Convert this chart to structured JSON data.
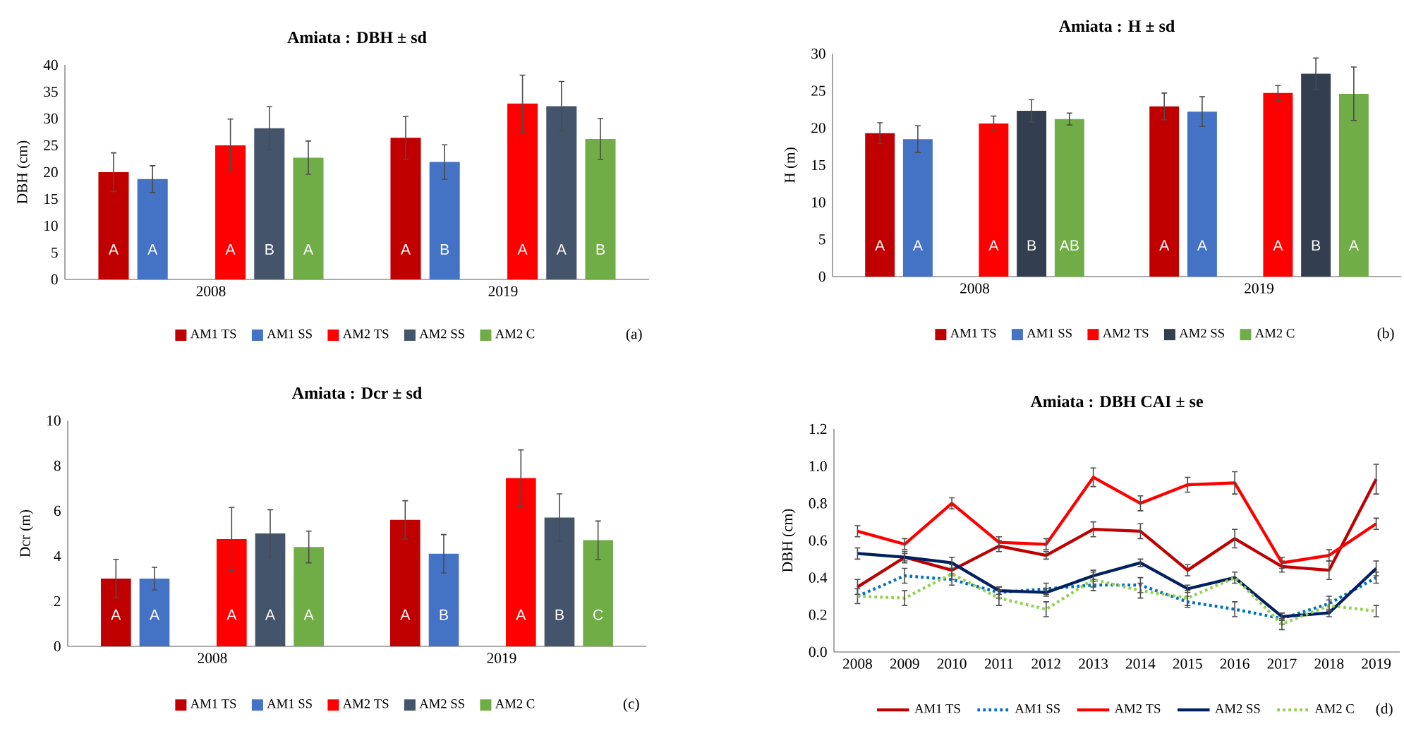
{
  "chart_data": [
    {
      "type": "bar",
      "title": "Amiata  : DBH ± sd",
      "ylabel": "DBH (cm)",
      "categories": [
        "2008",
        "2019"
      ],
      "ylim": [
        0,
        40
      ],
      "yticks": [
        0,
        5,
        10,
        15,
        20,
        25,
        30,
        35,
        40
      ],
      "legend": "bottom",
      "annotations": [
        "(a)"
      ],
      "series": [
        {
          "name": "AM1 TS",
          "color": "#c00000",
          "values": [
            20.0,
            26.4
          ],
          "errors": [
            3.6,
            4.0
          ],
          "value_labels": [
            "A",
            "A"
          ]
        },
        {
          "name": "AM1 SS",
          "color": "#4472c4",
          "values": [
            18.7,
            21.9
          ],
          "errors": [
            2.5,
            3.2
          ],
          "value_labels": [
            "A",
            "B"
          ]
        },
        {
          "name": "AM2 TS",
          "color": "#ff0000",
          "values": [
            25.0,
            32.8
          ],
          "errors": [
            4.9,
            5.3
          ],
          "value_labels": [
            "A",
            "A"
          ]
        },
        {
          "name": "AM2 SS",
          "color": "#44546a",
          "values": [
            28.2,
            32.3
          ],
          "errors": [
            4.0,
            4.6
          ],
          "value_labels": [
            "B",
            "A"
          ]
        },
        {
          "name": "AM2 C",
          "color": "#70ad47",
          "values": [
            22.7,
            26.2
          ],
          "errors": [
            3.1,
            3.8
          ],
          "value_labels": [
            "A",
            "B"
          ]
        }
      ]
    },
    {
      "type": "bar",
      "title": "Amiata : H ± sd",
      "ylabel": "H (m)",
      "categories": [
        "2008",
        "2019"
      ],
      "ylim": [
        0,
        30
      ],
      "yticks": [
        0,
        5,
        10,
        15,
        20,
        25,
        30
      ],
      "legend": "bottom",
      "annotations": [
        "(b)"
      ],
      "series": [
        {
          "name": "AM1 TS",
          "color": "#c00000",
          "values": [
            19.3,
            22.9
          ],
          "errors": [
            1.4,
            1.8
          ],
          "value_labels": [
            "A",
            "A"
          ]
        },
        {
          "name": "AM1 SS",
          "color": "#4472c4",
          "values": [
            18.5,
            22.2
          ],
          "errors": [
            1.8,
            2.0
          ],
          "value_labels": [
            "A",
            "A"
          ]
        },
        {
          "name": "AM2 TS",
          "color": "#ff0000",
          "values": [
            20.6,
            24.7
          ],
          "errors": [
            1.0,
            1.0
          ],
          "value_labels": [
            "A",
            "A"
          ]
        },
        {
          "name": "AM2 SS",
          "color": "#333f50",
          "values": [
            22.3,
            27.3
          ],
          "errors": [
            1.5,
            2.1
          ],
          "value_labels": [
            "B",
            "B"
          ]
        },
        {
          "name": "AM2 C",
          "color": "#70ad47",
          "values": [
            21.2,
            24.6
          ],
          "errors": [
            0.8,
            3.6
          ],
          "value_labels": [
            "AB",
            "A"
          ]
        }
      ]
    },
    {
      "type": "bar",
      "title": "Amiata : Dcr ± sd",
      "ylabel": "Dcr (m)",
      "categories": [
        "2008",
        "2019"
      ],
      "ylim": [
        0,
        10
      ],
      "yticks": [
        0,
        2,
        4,
        6,
        8,
        10
      ],
      "legend": "bottom",
      "annotations": [
        "(c)"
      ],
      "series": [
        {
          "name": "AM1 TS",
          "color": "#c00000",
          "values": [
            3.0,
            5.6
          ],
          "errors": [
            0.85,
            0.85
          ],
          "value_labels": [
            "A",
            "A"
          ]
        },
        {
          "name": "AM1 SS",
          "color": "#4472c4",
          "values": [
            3.0,
            4.1
          ],
          "errors": [
            0.5,
            0.85
          ],
          "value_labels": [
            "A",
            "B"
          ]
        },
        {
          "name": "AM2 TS",
          "color": "#ff0000",
          "values": [
            4.75,
            7.45
          ],
          "errors": [
            1.4,
            1.25
          ],
          "value_labels": [
            "A",
            "A"
          ]
        },
        {
          "name": "AM2 SS",
          "color": "#44546a",
          "values": [
            5.0,
            5.7
          ],
          "errors": [
            1.05,
            1.05
          ],
          "value_labels": [
            "A",
            "B"
          ]
        },
        {
          "name": "AM2 C",
          "color": "#70ad47",
          "values": [
            4.4,
            4.7
          ],
          "errors": [
            0.7,
            0.85
          ],
          "value_labels": [
            "A",
            "C"
          ]
        }
      ]
    },
    {
      "type": "line",
      "title": "Amiata : DBH CAI ± se",
      "ylabel": "DBH (cm)",
      "categories": [
        "2008",
        "2009",
        "2010",
        "2011",
        "2012",
        "2013",
        "2014",
        "2015",
        "2016",
        "2017",
        "2018",
        "2019"
      ],
      "ylim": [
        0,
        1.2
      ],
      "yticks": [
        {
          "value": 0,
          "label": "0.0"
        },
        {
          "value": 0.2,
          "label": "0.2"
        },
        {
          "value": 0.4,
          "label": "0.4"
        },
        {
          "value": 0.6,
          "label": "0.6"
        },
        {
          "value": 0.8,
          "label": "0.8"
        },
        {
          "value": 1.0,
          "label": "1.0"
        },
        {
          "value": 1.2,
          "label": "1.2"
        }
      ],
      "legend": "bottom",
      "annotations": [
        "(d)"
      ],
      "series": [
        {
          "name": "AM1 TS",
          "color": "#c00000",
          "line_style": "solid",
          "values": [
            0.35,
            0.51,
            0.44,
            0.57,
            0.52,
            0.66,
            0.65,
            0.44,
            0.61,
            0.46,
            0.44,
            0.93
          ],
          "errors": [
            0.04,
            0.03,
            0.03,
            0.03,
            0.02,
            0.04,
            0.04,
            0.03,
            0.05,
            0.03,
            0.05,
            0.08
          ]
        },
        {
          "name": "AM1 SS",
          "color": "#0070c0",
          "line_style": "dotted",
          "values": [
            0.3,
            0.41,
            0.39,
            0.32,
            0.34,
            0.36,
            0.36,
            0.27,
            0.23,
            0.18,
            0.26,
            0.4
          ],
          "errors": [
            0.04,
            0.04,
            0.03,
            0.03,
            0.03,
            0.03,
            0.04,
            0.03,
            0.04,
            0.03,
            0.04,
            0.03
          ]
        },
        {
          "name": "AM2 TS",
          "color": "#ff0000",
          "line_style": "solid",
          "values": [
            0.65,
            0.58,
            0.8,
            0.59,
            0.58,
            0.94,
            0.8,
            0.9,
            0.91,
            0.48,
            0.52,
            0.69
          ],
          "errors": [
            0.03,
            0.03,
            0.03,
            0.03,
            0.03,
            0.05,
            0.04,
            0.04,
            0.06,
            0.03,
            0.03,
            0.03
          ]
        },
        {
          "name": "AM2 SS",
          "color": "#002060",
          "line_style": "solid",
          "values": [
            0.53,
            0.51,
            0.48,
            0.33,
            0.32,
            0.41,
            0.48,
            0.34,
            0.4,
            0.19,
            0.21,
            0.45
          ],
          "errors": [
            0.03,
            0.02,
            0.03,
            0.02,
            0.02,
            0.03,
            0.02,
            0.02,
            0.03,
            0.02,
            0.02,
            0.04
          ]
        },
        {
          "name": "AM2 C",
          "color": "#92d050",
          "line_style": "dotted",
          "values": [
            0.3,
            0.29,
            0.42,
            0.29,
            0.23,
            0.39,
            0.33,
            0.29,
            0.4,
            0.15,
            0.25,
            0.22
          ],
          "errors": [
            null,
            0.04,
            0.03,
            0.04,
            0.04,
            0.04,
            0.04,
            0.04,
            null,
            0.03,
            0.03,
            0.03
          ]
        }
      ]
    }
  ]
}
